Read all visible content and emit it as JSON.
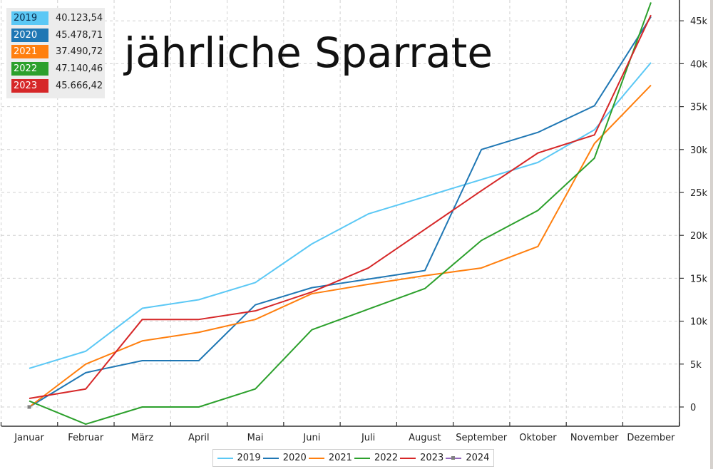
{
  "title": "jährliche Sparrate",
  "totals": [
    {
      "year": "2019",
      "total": "40.123,54",
      "color": "#5bc8f5",
      "text_color": "#0b2a4a"
    },
    {
      "year": "2020",
      "total": "45.478,71",
      "color": "#1f77b4",
      "text_color": "#ffffff"
    },
    {
      "year": "2021",
      "total": "37.490,72",
      "color": "#ff7f0e",
      "text_color": "#ffffff"
    },
    {
      "year": "2022",
      "total": "47.140,46",
      "color": "#2ca02c",
      "text_color": "#ffffff"
    },
    {
      "year": "2023",
      "total": "45.666,42",
      "color": "#d62728",
      "text_color": "#ffffff"
    }
  ],
  "legend": [
    {
      "label": "2019",
      "color": "#5bc8f5",
      "marker": false
    },
    {
      "label": "2020",
      "color": "#1f77b4",
      "marker": false
    },
    {
      "label": "2021",
      "color": "#ff7f0e",
      "marker": false
    },
    {
      "label": "2022",
      "color": "#2ca02c",
      "marker": false
    },
    {
      "label": "2023",
      "color": "#d62728",
      "marker": false
    },
    {
      "label": "2024",
      "color": "#9467bd",
      "marker": true
    }
  ],
  "chart_data": {
    "type": "line",
    "title": "jährliche Sparrate",
    "xlabel": "",
    "ylabel": "",
    "categories": [
      "Januar",
      "Februar",
      "März",
      "April",
      "Mai",
      "Juni",
      "Juli",
      "August",
      "September",
      "Oktober",
      "November",
      "Dezember"
    ],
    "y_ticks": [
      0,
      5000,
      10000,
      15000,
      20000,
      25000,
      30000,
      35000,
      40000,
      45000
    ],
    "y_tick_labels": [
      "0",
      "5k",
      "10k",
      "15k",
      "20k",
      "25k",
      "30k",
      "35k",
      "40k",
      "45k"
    ],
    "ylim": [
      -2000,
      47000
    ],
    "y_axis_position": "right",
    "grid": true,
    "legend_position": "bottom",
    "series": [
      {
        "name": "2019",
        "color": "#5bc8f5",
        "values": [
          4500,
          6500,
          11500,
          12500,
          14500,
          19000,
          22500,
          24500,
          26500,
          28500,
          32300,
          40124
        ]
      },
      {
        "name": "2020",
        "color": "#1f77b4",
        "values": [
          0,
          4000,
          5400,
          5400,
          11900,
          13900,
          14900,
          15900,
          30000,
          32000,
          35100,
          45479
        ]
      },
      {
        "name": "2021",
        "color": "#ff7f0e",
        "values": [
          0,
          5000,
          7700,
          8700,
          10200,
          13200,
          14300,
          15300,
          16200,
          18700,
          30700,
          37491
        ]
      },
      {
        "name": "2022",
        "color": "#2ca02c",
        "values": [
          700,
          -2000,
          0,
          0,
          2100,
          9000,
          11400,
          13800,
          19400,
          22900,
          29000,
          47140
        ]
      },
      {
        "name": "2023",
        "color": "#d62728",
        "values": [
          1000,
          2100,
          10200,
          10200,
          11200,
          13400,
          16200,
          20700,
          25200,
          29600,
          31700,
          45666
        ]
      },
      {
        "name": "2024",
        "color": "#9467bd",
        "values": [
          0,
          null,
          null,
          null,
          null,
          null,
          null,
          null,
          null,
          null,
          null,
          null
        ]
      }
    ]
  }
}
